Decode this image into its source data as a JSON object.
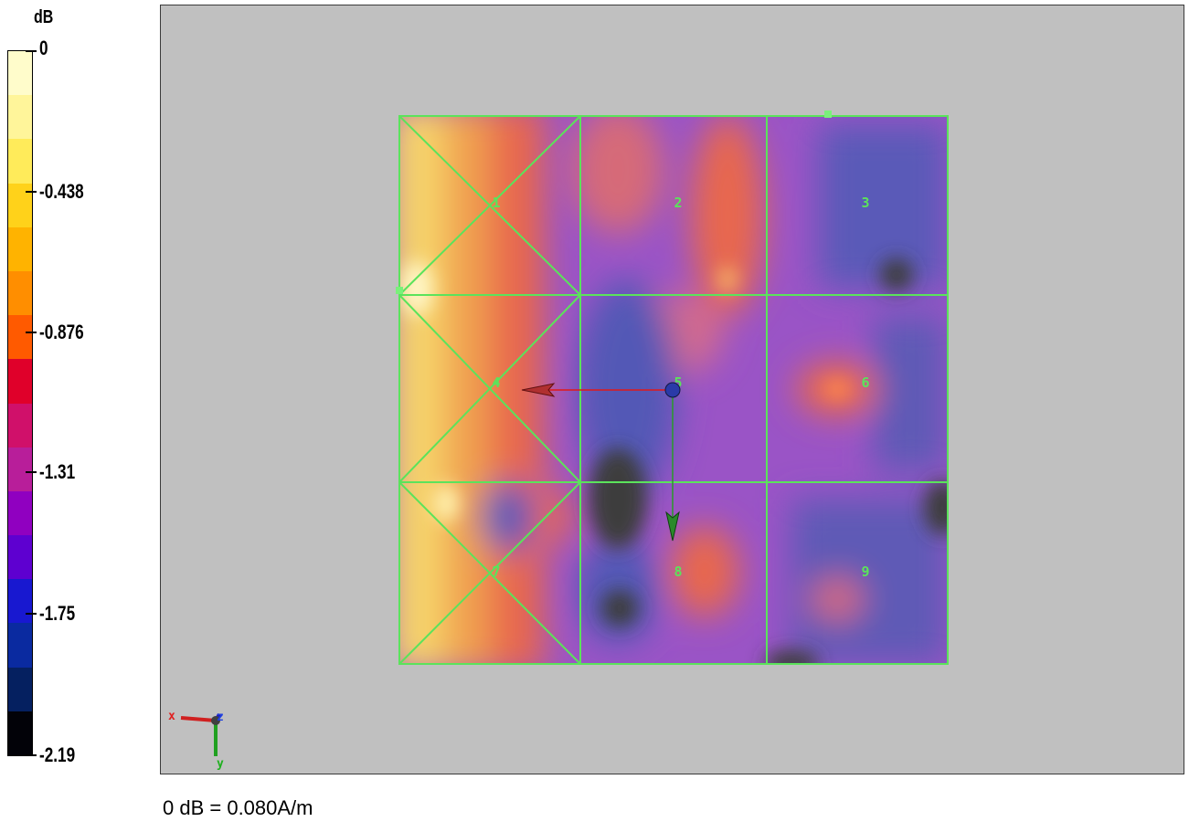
{
  "legend": {
    "unit": "dB",
    "ticks": [
      "0",
      "-0.438",
      "-0.876",
      "-1.31",
      "-1.75",
      "-2.19"
    ],
    "tick_values": [
      0,
      -0.438,
      -0.876,
      -1.31,
      -1.75,
      -2.19
    ],
    "colors": [
      "#fffccb",
      "#fff59a",
      "#ffeb5a",
      "#ffd21a",
      "#ffb300",
      "#ff8e00",
      "#ff5a00",
      "#e0002a",
      "#d0106a",
      "#b81e9a",
      "#9000c0",
      "#5e00d0",
      "#1818d0",
      "#0a2aa0",
      "#052060",
      "#020208"
    ]
  },
  "grid": {
    "cell_labels": [
      "1",
      "2",
      "3",
      "4",
      "5",
      "6",
      "7",
      "8",
      "9"
    ]
  },
  "axes_indicator": {
    "x": "x",
    "y": "y",
    "z": "z"
  },
  "footer": {
    "note": "0 dB = 0.080A/m"
  },
  "colors": {
    "grid_line": "#5be35b",
    "background": "#c0c0c0"
  }
}
